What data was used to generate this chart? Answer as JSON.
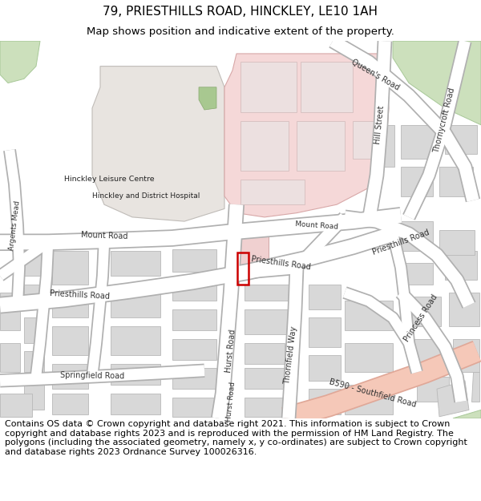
{
  "title_line1": "79, PRIESTHILLS ROAD, HINCKLEY, LE10 1AH",
  "title_line2": "Map shows position and indicative extent of the property.",
  "footer_text": "Contains OS data © Crown copyright and database right 2021. This information is subject to Crown copyright and database rights 2023 and is reproduced with the permission of HM Land Registry. The polygons (including the associated geometry, namely x, y co-ordinates) are subject to Crown copyright and database rights 2023 Ordnance Survey 100026316.",
  "title_fontsize": 11,
  "subtitle_fontsize": 9.5,
  "footer_fontsize": 8.0,
  "bg_color": "#ffffff",
  "map_bg": "#f0ede6",
  "road_color": "#ffffff",
  "road_outline": "#b0b0b0",
  "building_fill": "#d8d8d8",
  "building_edge": "#b8b8b8",
  "hospital_fill": "#f5d8d8",
  "hospital_edge": "#d8a8a8",
  "leisure_fill": "#e8e4e0",
  "leisure_edge": "#c0bcb8",
  "green_fill": "#cce0bc",
  "green_edge": "#a8c898",
  "b590_fill": "#f5c8b8",
  "b590_edge": "#e0a898",
  "property_color": "#cc0000",
  "label_color": "#333333",
  "label_fontsize": 7.0
}
